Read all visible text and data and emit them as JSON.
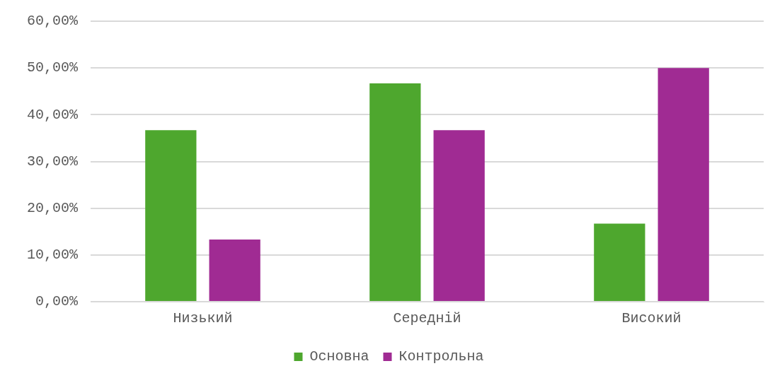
{
  "chart_data": {
    "type": "bar",
    "categories": [
      "Низький",
      "Середній",
      "Високий"
    ],
    "series": [
      {
        "name": "Основна",
        "color": "#4ea72e",
        "values": [
          36.7,
          46.7,
          16.7
        ]
      },
      {
        "name": "Контрольна",
        "color": "#a02b93",
        "values": [
          13.3,
          36.7,
          50
        ]
      }
    ],
    "ylim": [
      0,
      60
    ],
    "yticks": [
      {
        "value": 0,
        "label": "0,00%"
      },
      {
        "value": 10,
        "label": "10,00%"
      },
      {
        "value": 20,
        "label": "20,00%"
      },
      {
        "value": 30,
        "label": "30,00%"
      },
      {
        "value": 40,
        "label": "40,00%"
      },
      {
        "value": 50,
        "label": "50,00%"
      },
      {
        "value": 60,
        "label": "60,00%"
      }
    ],
    "grid": "y",
    "legend": "bottom"
  }
}
